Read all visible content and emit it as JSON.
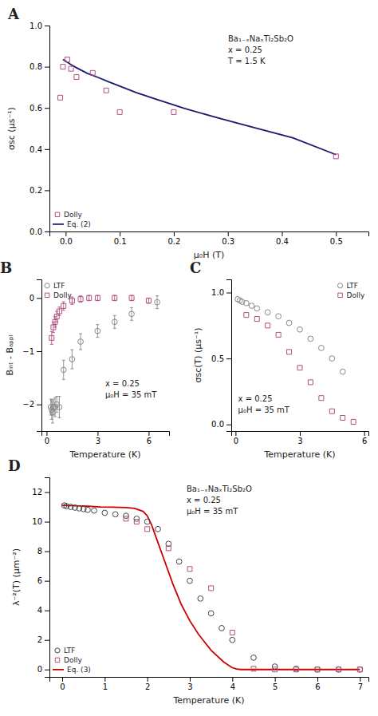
{
  "chart_data": [
    {
      "type": "scatter",
      "title": "A",
      "x_label": "μ₀H (T)",
      "y_label": "σsc (μs⁻¹)",
      "xlim": [
        -0.03,
        0.56
      ],
      "ylim": [
        0.0,
        1.0
      ],
      "xticks": [
        {
          "value": 0.0,
          "label": "0.0"
        },
        0.1,
        0.2,
        0.3,
        0.4,
        0.5
      ],
      "yticks": [
        {
          "value": 0.0,
          "label": "0.0"
        },
        0.2,
        0.4,
        0.6,
        0.8,
        {
          "value": 1.0,
          "label": "1.0"
        }
      ],
      "grid": false,
      "legend": "lower left",
      "annotations": [
        "Ba₁₋ₓNaₓTi₂Sb₂O",
        "x = 0.25",
        "T = 1.5 K"
      ],
      "series": [
        {
          "name": "Dolly",
          "type": "scatter",
          "marker": "square",
          "color": "#b05080",
          "x": [
            -0.01,
            -0.005,
            0.003,
            0.01,
            0.02,
            0.05,
            0.075,
            0.1,
            0.2,
            0.5
          ],
          "values": [
            0.65,
            0.8,
            0.835,
            0.79,
            0.75,
            0.77,
            0.685,
            0.58,
            0.58,
            0.365
          ]
        },
        {
          "name": "Eq. (2)",
          "type": "line",
          "line_style": "solid",
          "color": "#1a1a6e",
          "x": [
            -0.005,
            0.01,
            0.02,
            0.04,
            0.06,
            0.08,
            0.1,
            0.13,
            0.17,
            0.22,
            0.28,
            0.35,
            0.42,
            0.5
          ],
          "values": [
            0.835,
            0.81,
            0.795,
            0.768,
            0.748,
            0.726,
            0.706,
            0.675,
            0.64,
            0.597,
            0.553,
            0.503,
            0.455,
            0.373
          ]
        }
      ]
    },
    {
      "type": "scatter",
      "title": "B",
      "x_label": "Temperature (K)",
      "y_label": "Bᵢₙₜ - Bₐₚₚₗ",
      "xlim": [
        -0.3,
        7.2
      ],
      "ylim": [
        -2.5,
        0.35
      ],
      "xticks": [
        0,
        3,
        6
      ],
      "yticks": [
        {
          "value": -2,
          "label": "−2"
        },
        {
          "value": -1,
          "label": "−1"
        },
        0
      ],
      "grid": false,
      "legend": "upper left",
      "annotations": [
        "x = 0.25",
        "μ₀H = 35 mT"
      ],
      "series": [
        {
          "name": "LTF",
          "type": "scatter",
          "marker": "circle",
          "color": "#888888",
          "x": [
            0.25,
            0.3,
            0.35,
            0.4,
            0.5,
            0.6,
            0.75,
            1.0,
            1.5,
            2.0,
            3.0,
            4.0,
            5.0,
            6.5
          ],
          "values": [
            -2.05,
            -2.1,
            -2.15,
            -2.05,
            -2.05,
            -2.0,
            -2.05,
            -1.35,
            -1.15,
            -0.82,
            -0.62,
            -0.45,
            -0.3,
            -0.08
          ],
          "errors": [
            0.15,
            0.18,
            0.2,
            0.15,
            0.18,
            0.15,
            0.2,
            0.18,
            0.18,
            0.15,
            0.12,
            0.12,
            0.12,
            0.12
          ]
        },
        {
          "name": "Dolly",
          "type": "scatter",
          "marker": "square",
          "color": "#b05080",
          "x": [
            0.3,
            0.4,
            0.5,
            0.6,
            0.75,
            1.0,
            1.5,
            2.0,
            2.5,
            3.0,
            4.0,
            5.0,
            6.0
          ],
          "values": [
            -0.75,
            -0.55,
            -0.45,
            -0.35,
            -0.25,
            -0.15,
            -0.05,
            -0.02,
            -0.0,
            -0.0,
            -0.0,
            -0.0,
            -0.05
          ],
          "errors": [
            0.12,
            0.1,
            0.1,
            0.1,
            0.08,
            0.08,
            0.07,
            0.06,
            0.05,
            0.05,
            0.05,
            0.05,
            0.05
          ]
        }
      ]
    },
    {
      "type": "scatter",
      "title": "C",
      "x_label": "Temperature (K)",
      "y_label": "σsc(T) (μs⁻¹)",
      "xlim": [
        -0.2,
        6.2
      ],
      "ylim": [
        -0.05,
        1.1
      ],
      "xticks": [
        0,
        3,
        6
      ],
      "yticks": [
        {
          "value": 0.0,
          "label": "0.0"
        },
        0.5,
        {
          "value": 1.0,
          "label": "1.0"
        }
      ],
      "grid": false,
      "legend": "upper right",
      "annotations": [
        "x = 0.25",
        "μ₀H = 35 mT"
      ],
      "series": [
        {
          "name": "LTF",
          "type": "scatter",
          "marker": "circle",
          "color": "#888888",
          "x": [
            0.1,
            0.2,
            0.3,
            0.5,
            0.75,
            1.0,
            1.5,
            2.0,
            2.5,
            3.0,
            3.5,
            4.0,
            4.5,
            5.0
          ],
          "values": [
            0.95,
            0.94,
            0.93,
            0.92,
            0.9,
            0.88,
            0.85,
            0.82,
            0.77,
            0.72,
            0.65,
            0.58,
            0.5,
            0.4
          ]
        },
        {
          "name": "Dolly",
          "type": "scatter",
          "marker": "square",
          "color": "#b05080",
          "x": [
            0.5,
            1.0,
            1.5,
            2.0,
            2.5,
            3.0,
            3.5,
            4.0,
            4.5,
            5.0,
            5.5
          ],
          "values": [
            0.83,
            0.8,
            0.75,
            0.68,
            0.55,
            0.43,
            0.32,
            0.2,
            0.1,
            0.05,
            0.02
          ]
        }
      ]
    },
    {
      "type": "scatter",
      "title": "D",
      "x_label": "Temperature (K)",
      "y_label": "λ⁻²(T) (μm⁻²)",
      "xlim": [
        -0.3,
        7.2
      ],
      "ylim": [
        -0.5,
        13.0
      ],
      "xticks": [
        0,
        1,
        2,
        3,
        4,
        5,
        6,
        7
      ],
      "yticks": [
        0,
        2,
        4,
        6,
        8,
        10,
        12
      ],
      "grid": false,
      "legend": "lower left",
      "annotations": [
        "Ba₁₋ₓNaₓTi₂Sb₂O",
        "x = 0.25",
        "μ₀H = 35 mT"
      ],
      "series": [
        {
          "name": "LTF",
          "type": "scatter",
          "marker": "circle",
          "color": "#444444",
          "x": [
            0.05,
            0.1,
            0.2,
            0.3,
            0.4,
            0.5,
            0.6,
            0.75,
            1.0,
            1.25,
            1.5,
            1.75,
            2.0,
            2.25,
            2.5,
            2.75,
            3.0,
            3.25,
            3.5,
            3.75,
            4.0,
            4.5,
            5.0,
            5.5,
            6.0,
            6.5,
            7.0
          ],
          "values": [
            11.1,
            11.05,
            11.0,
            10.95,
            10.9,
            10.85,
            10.8,
            10.75,
            10.6,
            10.5,
            10.4,
            10.2,
            10.0,
            9.5,
            8.5,
            7.3,
            6.0,
            4.8,
            3.8,
            2.8,
            2.0,
            0.8,
            0.2,
            0.05,
            0.0,
            0.0,
            0.0
          ]
        },
        {
          "name": "Dolly",
          "type": "scatter",
          "marker": "square",
          "color": "#b05080",
          "x": [
            1.5,
            1.75,
            2.0,
            2.5,
            3.0,
            3.5,
            4.0,
            4.5,
            5.0,
            5.5,
            6.0,
            6.5,
            7.0
          ],
          "values": [
            10.2,
            10.0,
            9.5,
            8.2,
            6.8,
            5.5,
            2.5,
            0.05,
            0.0,
            0.0,
            0.0,
            0.0,
            0.0
          ]
        },
        {
          "name": "Eq. (3)",
          "type": "line",
          "line_style": "solid",
          "color": "#cc0000",
          "x": [
            0.0,
            0.3,
            0.6,
            0.9,
            1.2,
            1.5,
            1.7,
            1.9,
            2.0,
            2.1,
            2.2,
            2.4,
            2.6,
            2.8,
            3.0,
            3.2,
            3.5,
            3.8,
            4.0,
            4.1,
            4.2,
            4.5,
            5.0,
            6.0,
            7.0
          ],
          "values": [
            11.1,
            11.08,
            11.05,
            11.0,
            10.98,
            10.95,
            10.9,
            10.7,
            10.4,
            9.8,
            9.0,
            7.4,
            5.8,
            4.4,
            3.3,
            2.4,
            1.3,
            0.5,
            0.12,
            0.03,
            0.0,
            0.0,
            0.0,
            0.0,
            0.0
          ]
        }
      ]
    }
  ]
}
